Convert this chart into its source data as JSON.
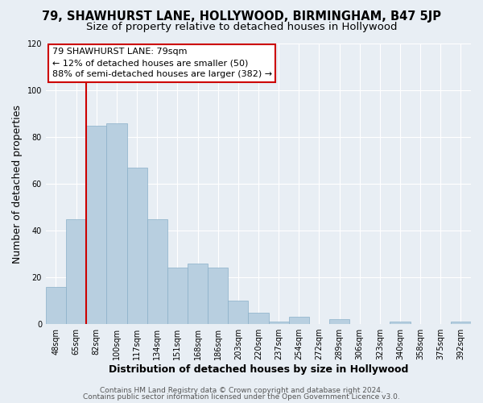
{
  "title": "79, SHAWHURST LANE, HOLLYWOOD, BIRMINGHAM, B47 5JP",
  "subtitle": "Size of property relative to detached houses in Hollywood",
  "xlabel": "Distribution of detached houses by size in Hollywood",
  "ylabel": "Number of detached properties",
  "bar_labels": [
    "48sqm",
    "65sqm",
    "82sqm",
    "100sqm",
    "117sqm",
    "134sqm",
    "151sqm",
    "168sqm",
    "186sqm",
    "203sqm",
    "220sqm",
    "237sqm",
    "254sqm",
    "272sqm",
    "289sqm",
    "306sqm",
    "323sqm",
    "340sqm",
    "358sqm",
    "375sqm",
    "392sqm"
  ],
  "bar_values": [
    16,
    45,
    85,
    86,
    67,
    45,
    24,
    26,
    24,
    10,
    5,
    1,
    3,
    0,
    2,
    0,
    0,
    1,
    0,
    0,
    1
  ],
  "bar_color": "#b8cfe0",
  "bar_edge_color": "#8ab0c8",
  "vline_color": "#cc0000",
  "vline_pos": 1.5,
  "ylim": [
    0,
    120
  ],
  "yticks": [
    0,
    20,
    40,
    60,
    80,
    100,
    120
  ],
  "annotation_line1": "79 SHAWHURST LANE: 79sqm",
  "annotation_line2": "← 12% of detached houses are smaller (50)",
  "annotation_line3": "88% of semi-detached houses are larger (382) →",
  "footer1": "Contains HM Land Registry data © Crown copyright and database right 2024.",
  "footer2": "Contains public sector information licensed under the Open Government Licence v3.0.",
  "background_color": "#e8eef4",
  "grid_color": "#ffffff",
  "title_fontsize": 10.5,
  "subtitle_fontsize": 9.5,
  "axis_label_fontsize": 9,
  "tick_fontsize": 7,
  "footer_fontsize": 6.5,
  "ann_fontsize": 8
}
